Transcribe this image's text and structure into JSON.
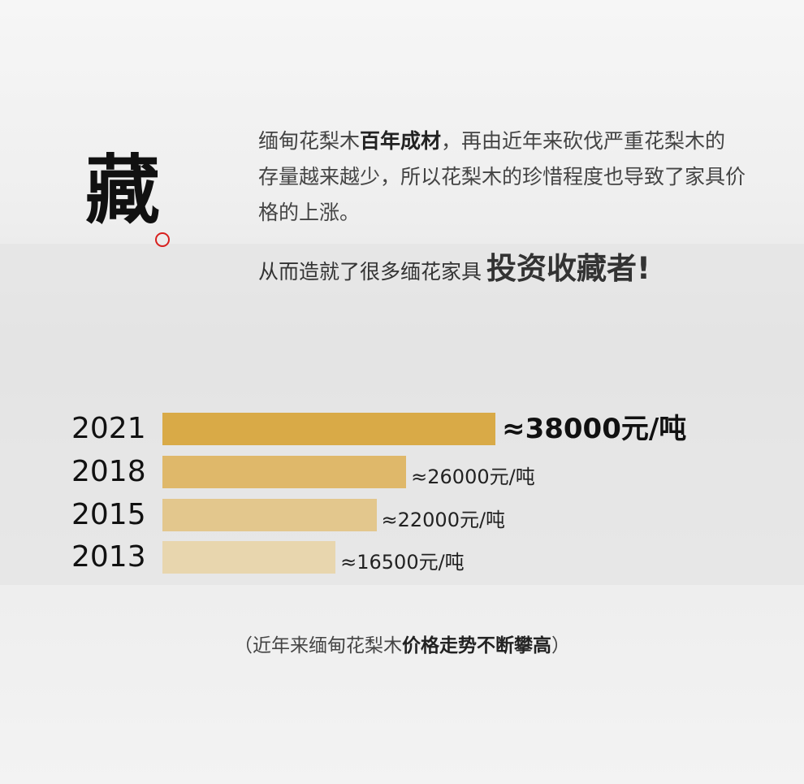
{
  "icon_char": {
    "text": "藏",
    "accent_color": "#d8201e"
  },
  "intro": {
    "part1": "缅甸花梨木",
    "bold1": "百年成材",
    "part2": "，再由近年来砍伐严重花梨木的存量越来越少，所以花梨木的珍惜程度也导致了家具价格的上涨。"
  },
  "slogan": {
    "normal": "从而造就了很多缅花家具",
    "strong": "投资收藏者!"
  },
  "chart_data": {
    "type": "bar",
    "orientation": "horizontal",
    "categories": [
      "2021",
      "2018",
      "2015",
      "2013"
    ],
    "values": [
      38000,
      26000,
      22000,
      16500
    ],
    "value_labels": [
      "≈38000元/吨",
      "≈26000元/吨",
      "≈22000元/吨",
      "≈16500元/吨"
    ],
    "colors": [
      "#d9aa47",
      "#dfb86a",
      "#e3c78d",
      "#e8d6ae"
    ],
    "grid": false
  },
  "caption": {
    "open": "（近年来缅甸花梨木",
    "bold": "价格走势不断攀高",
    "close": "）"
  }
}
